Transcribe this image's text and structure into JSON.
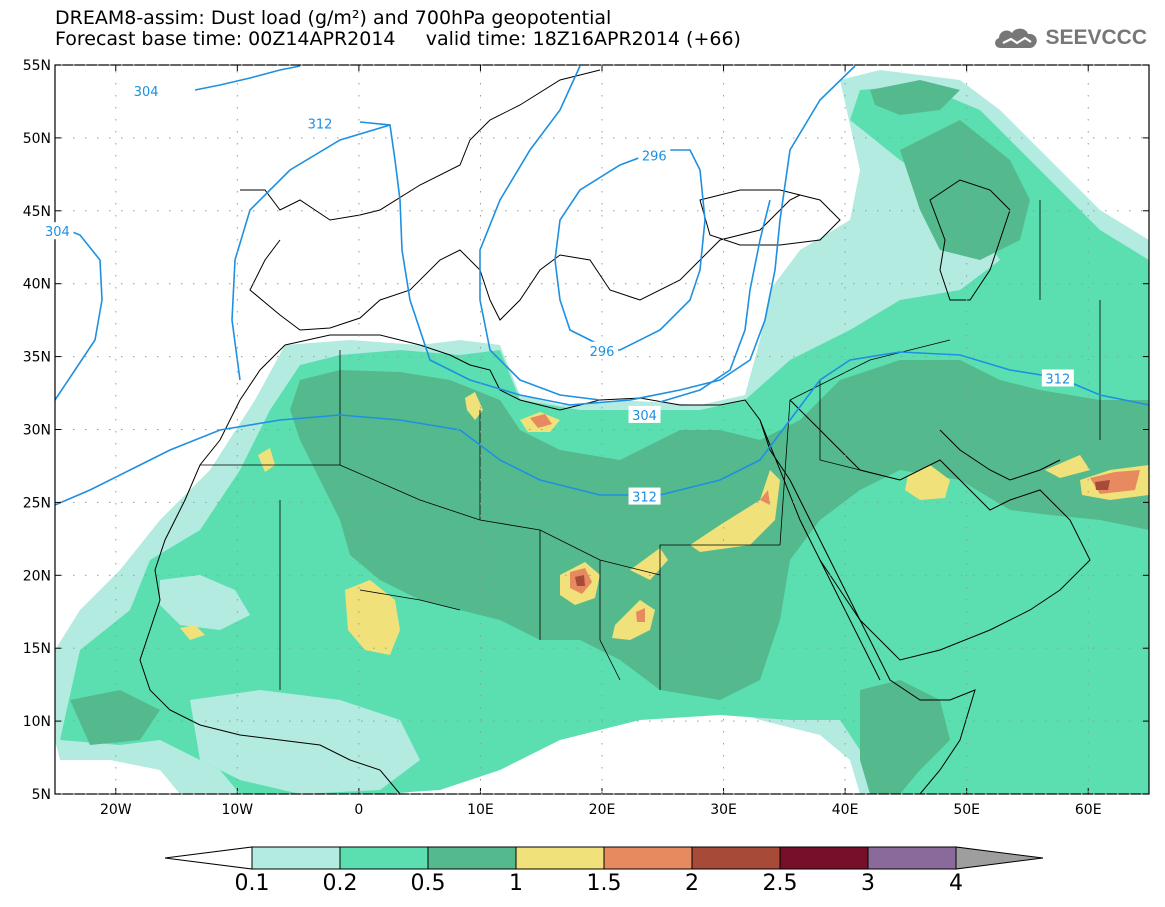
{
  "header": {
    "line1": "DREAM8-assim: Dust load (g/m²) and 700hPa geopotential",
    "line2": "Forecast base time: 00Z14APR2014     valid time: 18Z16APR2014 (+66)",
    "logo_text": "SEEVCCC"
  },
  "map": {
    "lon_range": [
      -25,
      65
    ],
    "lat_range": [
      5,
      55
    ],
    "lon_ticks": [
      {
        "v": -20,
        "label": "20W"
      },
      {
        "v": -10,
        "label": "10W"
      },
      {
        "v": 0,
        "label": "0"
      },
      {
        "v": 10,
        "label": "10E"
      },
      {
        "v": 20,
        "label": "20E"
      },
      {
        "v": 30,
        "label": "30E"
      },
      {
        "v": 40,
        "label": "40E"
      },
      {
        "v": 50,
        "label": "50E"
      },
      {
        "v": 60,
        "label": "60E"
      }
    ],
    "lat_ticks": [
      {
        "v": 55,
        "label": "55N"
      },
      {
        "v": 50,
        "label": "50N"
      },
      {
        "v": 45,
        "label": "45N"
      },
      {
        "v": 40,
        "label": "40N"
      },
      {
        "v": 35,
        "label": "35N"
      },
      {
        "v": 30,
        "label": "30N"
      },
      {
        "v": 25,
        "label": "25N"
      },
      {
        "v": 20,
        "label": "20N"
      },
      {
        "v": 15,
        "label": "15N"
      },
      {
        "v": 10,
        "label": "10N"
      },
      {
        "v": 5,
        "label": "5N"
      }
    ],
    "contour_color": "#1e90e0",
    "contour_labels": [
      {
        "text": "304",
        "lon": -17.5,
        "lat": 53.2
      },
      {
        "text": "312",
        "lon": -3.2,
        "lat": 51.0
      },
      {
        "text": "304",
        "lon": -24.8,
        "lat": 43.6
      },
      {
        "text": "296",
        "lon": 24.3,
        "lat": 48.8
      },
      {
        "text": "296",
        "lon": 20.0,
        "lat": 35.4
      },
      {
        "text": "304",
        "lon": 23.5,
        "lat": 31.0
      },
      {
        "text": "312",
        "lon": 23.5,
        "lat": 25.4
      },
      {
        "text": "312",
        "lon": 57.5,
        "lat": 33.5
      }
    ]
  },
  "colorbar": {
    "labels": [
      "0.1",
      "0.2",
      "0.5",
      "1",
      "1.5",
      "2",
      "2.5",
      "3",
      "4"
    ],
    "colors": [
      "#b3ebe0",
      "#5cdfb0",
      "#55b98e",
      "#f1e17a",
      "#e88a60",
      "#a84a38",
      "#780f28",
      "#8a6a9a"
    ],
    "low_color": "#ffffff",
    "high_color": "#9e9e9e"
  }
}
